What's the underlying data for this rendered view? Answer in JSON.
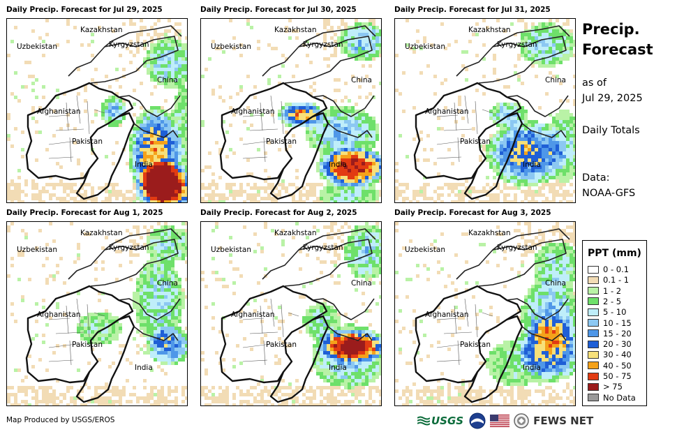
{
  "panels": [
    {
      "title": "Daily Precip. Forecast for Jul 29, 2025",
      "pattern": "jul29"
    },
    {
      "title": "Daily Precip. Forecast for Jul 30, 2025",
      "pattern": "jul30"
    },
    {
      "title": "Daily Precip. Forecast for Jul 31, 2025",
      "pattern": "jul31"
    },
    {
      "title": "Daily Precip. Forecast for Aug 1, 2025",
      "pattern": "aug1"
    },
    {
      "title": "Daily Precip. Forecast for Aug 2, 2025",
      "pattern": "aug2"
    },
    {
      "title": "Daily Precip. Forecast for Aug 3, 2025",
      "pattern": "aug3"
    }
  ],
  "country_labels": [
    "Kazakhstan",
    "Uzbekistan",
    "Kyrgyzstan",
    "China",
    "Afghanistan",
    "Pakistan",
    "India"
  ],
  "sidebar": {
    "title_line1": "Precip.",
    "title_line2": "Forecast",
    "asof_line1": "as of",
    "asof_line2": "Jul 29, 2025",
    "totals": "Daily Totals",
    "data_line1": "Data:",
    "data_line2": "NOAA-GFS"
  },
  "legend": {
    "title": "PPT (mm)",
    "items": [
      {
        "label": "0 - 0.1",
        "color": "#ffffff"
      },
      {
        "label": "0.1 - 1",
        "color": "#f2dcb5"
      },
      {
        "label": "1 - 2",
        "color": "#b9f2a6"
      },
      {
        "label": "2 - 5",
        "color": "#6ee06a"
      },
      {
        "label": "5 - 10",
        "color": "#bfeefa"
      },
      {
        "label": "10 - 15",
        "color": "#8cc8f2"
      },
      {
        "label": "15 - 20",
        "color": "#4f97e8"
      },
      {
        "label": "20 - 30",
        "color": "#1f5fd6"
      },
      {
        "label": "30 - 40",
        "color": "#f7e07a"
      },
      {
        "label": "40 - 50",
        "color": "#f5a21a"
      },
      {
        "label": "50 - 75",
        "color": "#e23b12"
      },
      {
        "label": "> 75",
        "color": "#9b1c1c"
      },
      {
        "label": "No Data",
        "color": "#9a9a9a"
      }
    ]
  },
  "footer": {
    "credit": "Map Produced by USGS/EROS",
    "usgs": "USGS",
    "fewsnet": "FEWS NET"
  }
}
